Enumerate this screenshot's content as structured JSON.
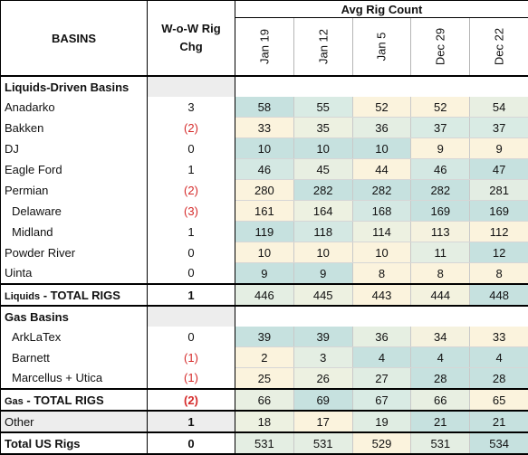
{
  "header": {
    "basins": "BASINS",
    "wow_line1": "W-o-W Rig",
    "wow_line2": "Chg",
    "avg": "Avg Rig Count",
    "dates": [
      "Jan 19",
      "Jan 12",
      "Jan 5",
      "Dec 29",
      "Dec 22"
    ]
  },
  "sections": {
    "liquids": "Liquids-Driven Basins",
    "gas": "Gas Basins"
  },
  "rows": [
    {
      "name": "Anadarko",
      "wow": "3",
      "vals": [
        "58",
        "55",
        "52",
        "52",
        "54"
      ],
      "colors": [
        "#c6e1df",
        "#d9ebe4",
        "#fbf3dd",
        "#fbf3dd",
        "#e8efe2"
      ]
    },
    {
      "name": "Bakken",
      "wow": "(2)",
      "neg": true,
      "vals": [
        "33",
        "35",
        "36",
        "37",
        "37"
      ],
      "colors": [
        "#fbf3dd",
        "#edf1e1",
        "#e4eee3",
        "#d9ebe4",
        "#d9ebe4"
      ]
    },
    {
      "name": "DJ",
      "wow": "0",
      "vals": [
        "10",
        "10",
        "10",
        "9",
        "9"
      ],
      "colors": [
        "#c6e1df",
        "#c6e1df",
        "#c6e1df",
        "#fbf3dd",
        "#fbf3dd"
      ]
    },
    {
      "name": "Eagle Ford",
      "wow": "1",
      "vals": [
        "46",
        "45",
        "44",
        "46",
        "47"
      ],
      "colors": [
        "#d4e8e3",
        "#e8efe2",
        "#fbf3dd",
        "#d4e8e3",
        "#c6e1df"
      ]
    },
    {
      "name": "Permian",
      "wow": "(2)",
      "neg": true,
      "vals": [
        "280",
        "282",
        "282",
        "282",
        "281"
      ],
      "colors": [
        "#fbf3dd",
        "#c6e1df",
        "#c6e1df",
        "#c6e1df",
        "#e3ede3"
      ]
    },
    {
      "name": "Delaware",
      "wow": "(3)",
      "neg": true,
      "indent": true,
      "vals": [
        "161",
        "164",
        "168",
        "169",
        "169"
      ],
      "colors": [
        "#fbf3dd",
        "#edf1e1",
        "#d4e8e3",
        "#c6e1df",
        "#c6e1df"
      ]
    },
    {
      "name": "Midland",
      "wow": "1",
      "indent": true,
      "vals": [
        "119",
        "118",
        "114",
        "113",
        "112"
      ],
      "colors": [
        "#c6e1df",
        "#d4e8e3",
        "#edf1e1",
        "#f5f2df",
        "#fbf3dd"
      ]
    },
    {
      "name": "Powder River",
      "wow": "0",
      "vals": [
        "10",
        "10",
        "10",
        "11",
        "12"
      ],
      "colors": [
        "#fbf3dd",
        "#fbf3dd",
        "#fbf3dd",
        "#e4eee3",
        "#c6e1df"
      ]
    },
    {
      "name": "Uinta",
      "wow": "0",
      "vals": [
        "9",
        "9",
        "8",
        "8",
        "8"
      ],
      "colors": [
        "#c6e1df",
        "#c6e1df",
        "#fbf3dd",
        "#fbf3dd",
        "#fbf3dd"
      ]
    }
  ],
  "liquids_total": {
    "prefix": "Liquids",
    "suffix": " - TOTAL RIGS",
    "wow": "1",
    "vals": [
      "446",
      "445",
      "443",
      "444",
      "448"
    ],
    "colors": [
      "#e4eee3",
      "#edf1e1",
      "#fbf3dd",
      "#f3f2df",
      "#c6e1df"
    ]
  },
  "gas_rows": [
    {
      "name": "ArkLaTex",
      "wow": "0",
      "vals": [
        "39",
        "39",
        "36",
        "34",
        "33"
      ],
      "colors": [
        "#c6e1df",
        "#c6e1df",
        "#e6efe2",
        "#f5f2df",
        "#fbf3dd"
      ]
    },
    {
      "name": "Barnett",
      "wow": "(1)",
      "neg": true,
      "vals": [
        "2",
        "3",
        "4",
        "4",
        "4"
      ],
      "colors": [
        "#fbf3dd",
        "#e4eee3",
        "#c6e1df",
        "#c6e1df",
        "#c6e1df"
      ]
    },
    {
      "name": "Marcellus + Utica",
      "wow": "(1)",
      "neg": true,
      "vals": [
        "25",
        "26",
        "27",
        "28",
        "28"
      ],
      "colors": [
        "#fbf3dd",
        "#edf1e1",
        "#e0ede3",
        "#c6e1df",
        "#c6e1df"
      ]
    }
  ],
  "gas_total": {
    "prefix": "Gas",
    "suffix": " - TOTAL RIGS",
    "wow": "(2)",
    "vals": [
      "66",
      "69",
      "67",
      "66",
      "65"
    ],
    "colors": [
      "#e8efe2",
      "#c6e1df",
      "#d9ebe4",
      "#e8efe2",
      "#fbf3dd"
    ]
  },
  "other": {
    "name": "Other",
    "wow": "1",
    "vals": [
      "18",
      "17",
      "19",
      "21",
      "21"
    ],
    "colors": [
      "#edf1e1",
      "#fbf3dd",
      "#e0ede3",
      "#c6e1df",
      "#c6e1df"
    ]
  },
  "total_us": {
    "name": "Total US Rigs",
    "wow": "0",
    "vals": [
      "531",
      "531",
      "529",
      "531",
      "534"
    ],
    "colors": [
      "#e4eee3",
      "#e4eee3",
      "#fbf3dd",
      "#e4eee3",
      "#c6e1df"
    ]
  }
}
